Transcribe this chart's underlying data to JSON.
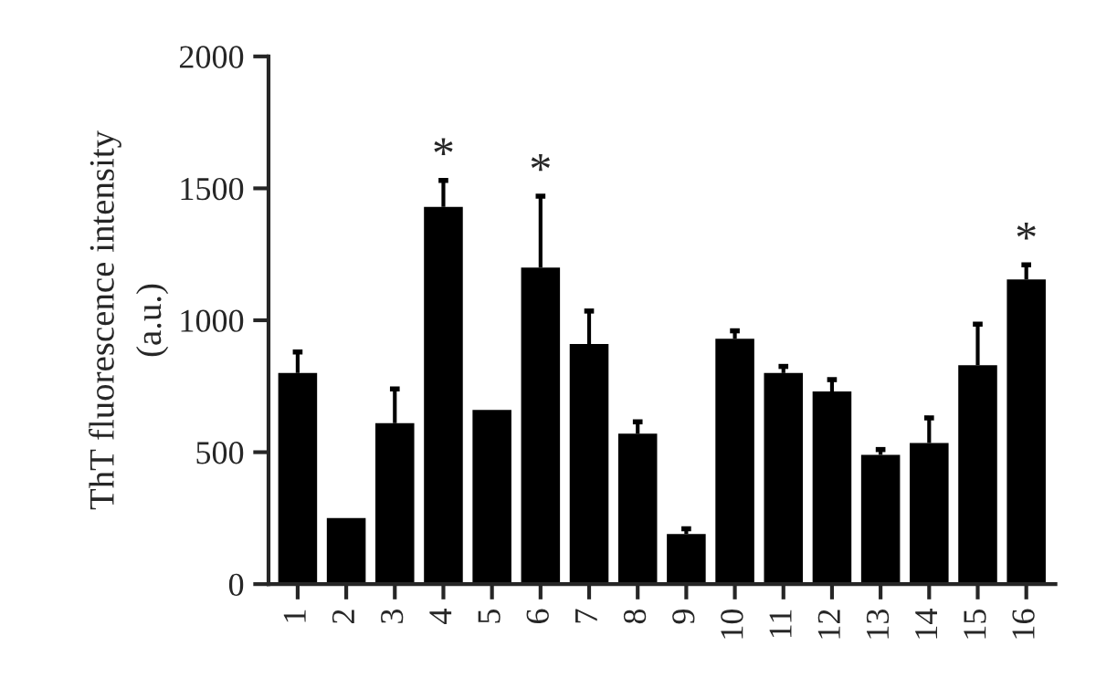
{
  "chart_data": {
    "type": "bar",
    "ylabel": "ThT fluorescence intensity\n(a.u.)",
    "categories": [
      "1",
      "2",
      "3",
      "4",
      "5",
      "6",
      "7",
      "8",
      "9",
      "10",
      "11",
      "12",
      "13",
      "14",
      "15",
      "16"
    ],
    "series": [
      {
        "color": "#000000",
        "values": [
          800,
          250,
          610,
          1430,
          660,
          1200,
          910,
          570,
          190,
          930,
          800,
          730,
          490,
          535,
          830,
          1155
        ],
        "errors": [
          [
            800,
            880
          ],
          null,
          [
            610,
            740
          ],
          [
            1430,
            1530
          ],
          null,
          [
            1200,
            1470
          ],
          [
            910,
            1035
          ],
          [
            570,
            615
          ],
          [
            190,
            210
          ],
          [
            930,
            960
          ],
          [
            800,
            825
          ],
          [
            730,
            775
          ],
          [
            490,
            510
          ],
          [
            535,
            630
          ],
          [
            830,
            985
          ],
          [
            1155,
            1210
          ]
        ]
      }
    ],
    "annotations": [
      {
        "text": "*",
        "x": "4",
        "y": 1530
      },
      {
        "text": "*",
        "x": "6",
        "y": 1470
      },
      {
        "text": "*",
        "x": "16",
        "y": 1210
      }
    ],
    "ylim": [
      0,
      2000
    ],
    "yticks": [
      0,
      500,
      1000,
      1500,
      2000
    ],
    "grid": false,
    "legend": false
  }
}
